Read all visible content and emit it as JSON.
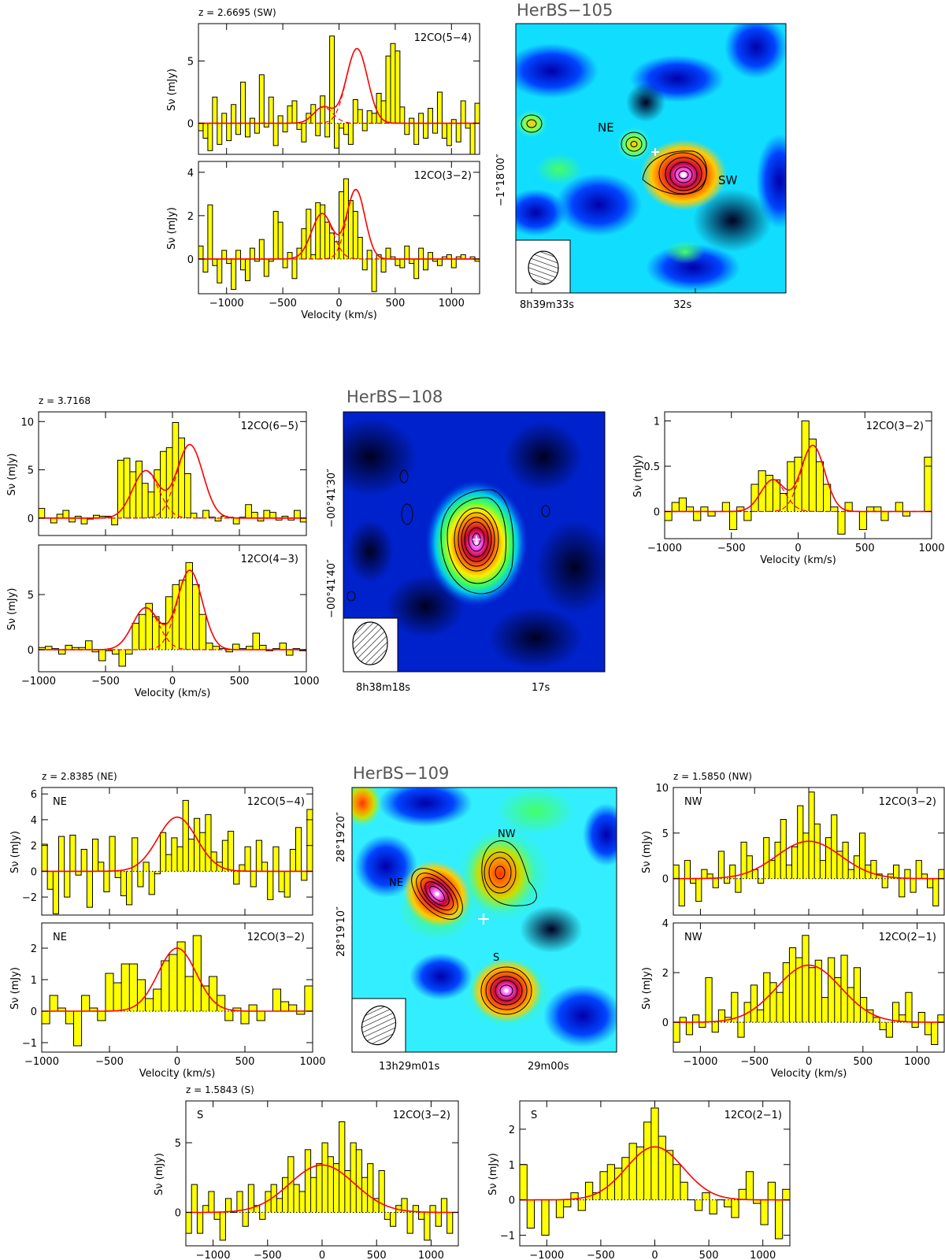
{
  "figure": {
    "titles": [
      "HerBS−105",
      "HerBS−108",
      "HerBS−109"
    ],
    "redshifts": [
      "z = 2.6695 (SW)",
      "z = 3.7168",
      "z = 2.8385 (NE)",
      "z = 1.5850 (NW)",
      "z = 1.5843 (S)"
    ],
    "x_axis_label": "Velocity (km/s)",
    "y_axis_label": "Sν (mJy)",
    "source_labels": {
      "hb105": [
        "NE",
        "SW"
      ],
      "hb109": [
        "NW",
        "NE",
        "S"
      ]
    },
    "map_ticks": {
      "hb105": {
        "ra": [
          "8h39m33s",
          "32s"
        ],
        "dec": [
          "−1°18′00″"
        ]
      },
      "hb108": {
        "ra": [
          "8h38m18s",
          "17s"
        ],
        "dec": [
          "−00°41′30″",
          "−00°41′40″"
        ]
      },
      "hb109": {
        "ra": [
          "13h29m01s",
          "29m00s"
        ],
        "dec": [
          "28°19′20″",
          "28°19′10″"
        ]
      }
    }
  },
  "chart_data": [
    {
      "id": "hb105-co54",
      "type": "bar",
      "line": "12CO(5−4)",
      "xlim": [
        -1250,
        1250
      ],
      "ylim": [
        -2.5,
        8
      ],
      "yticks": [
        0,
        5
      ],
      "xticks": [
        -1000,
        -500,
        0,
        500,
        1000
      ],
      "show_xticklabels": false,
      "xlabel": "",
      "ylabel": "Sν (mJy)",
      "redshift": "z = 2.6695 (SW)",
      "fit": [
        {
          "amp": 6.0,
          "center": 160,
          "fwhm": 220
        },
        {
          "amp": 1.3,
          "center": -140,
          "fwhm": 200
        }
      ],
      "values": [
        -0.6,
        -1.2,
        -2.2,
        2.1,
        -1.7,
        0.8,
        -1.4,
        1.5,
        -0.9,
        3.3,
        -1.1,
        0.4,
        -0.8,
        3.9,
        -0.3,
        2.1,
        -1.8,
        0.6,
        -0.7,
        1.4,
        1.8,
        -0.5,
        -1.5,
        0.8,
        1.5,
        -1.0,
        2.2,
        -1.1,
        7.0,
        -2.0,
        -0.4,
        -0.9,
        -1.7,
        1.9,
        1.1,
        -0.6,
        1.0,
        0.8,
        2.4,
        1.8,
        5.4,
        6.4,
        5.8,
        1.3,
        -0.9,
        0.4,
        -1.7,
        0.8,
        -1.2,
        1.2,
        -0.8,
        2.5,
        -1.2,
        -1.8,
        0.3,
        -1.5,
        1.8,
        -0.4,
        -2.5,
        1.6
      ]
    },
    {
      "id": "hb105-co32",
      "type": "bar",
      "line": "12CO(3−2)",
      "xlim": [
        -1250,
        1250
      ],
      "ylim": [
        -1.6,
        4.5
      ],
      "yticks": [
        0,
        2,
        4
      ],
      "xticks": [
        -1000,
        -500,
        0,
        500,
        1000
      ],
      "show_xticklabels": true,
      "xlabel": "Velocity (km/s)",
      "ylabel": "Sν (mJy)",
      "fit": [
        {
          "amp": 3.2,
          "center": 150,
          "fwhm": 190
        },
        {
          "amp": 2.1,
          "center": -150,
          "fwhm": 220
        }
      ],
      "values": [
        0.6,
        -0.6,
        2.5,
        -0.3,
        -1.1,
        0.4,
        -0.2,
        -1.4,
        0.4,
        -0.5,
        -1.0,
        0.5,
        -0.1,
        0.9,
        -0.8,
        -0.1,
        2.2,
        1.7,
        -0.4,
        0.3,
        -0.9,
        0.5,
        1.4,
        2.3,
        0.2,
        2.6,
        2.5,
        1.7,
        1.2,
        0.8,
        3.1,
        3.7,
        2.7,
        2.2,
        1.0,
        -0.5,
        0.4,
        -1.5,
        0.2,
        -0.6,
        0.5,
        0.1,
        -0.3,
        -0.4,
        0.6,
        -0.2,
        -0.9,
        0.5,
        -0.5,
        0.3,
        -0.1,
        -0.3,
        0.1,
        0.2,
        -0.4,
        0.1,
        0.2,
        0.0,
        0.1,
        -0.1
      ]
    },
    {
      "id": "hb108-co65",
      "type": "bar",
      "line": "12CO(6−5)",
      "xlim": [
        -1000,
        1000
      ],
      "ylim": [
        -1.8,
        11
      ],
      "yticks": [
        0,
        5,
        10
      ],
      "xticks": [
        -1000,
        -500,
        0,
        500,
        1000
      ],
      "show_xticklabels": false,
      "xlabel": "",
      "ylabel": "Sν (mJy)",
      "redshift": "z = 3.7168",
      "fit": [
        {
          "amp": 7.6,
          "center": 130,
          "fwhm": 230
        },
        {
          "amp": 4.9,
          "center": -200,
          "fwhm": 230
        }
      ],
      "values": [
        1.0,
        0.0,
        -0.5,
        0.4,
        0.8,
        -0.4,
        0.2,
        -0.6,
        -0.1,
        0.3,
        0.2,
        0.2,
        -0.7,
        6.0,
        6.2,
        4.8,
        5.9,
        3.6,
        2.7,
        5.0,
        6.9,
        7.3,
        9.9,
        8.3,
        4.6,
        0.5,
        0.0,
        0.8,
        0.1,
        -0.3,
        0.2,
        0.1,
        -0.6,
        0.1,
        1.4,
        0.6,
        -0.3,
        0.8,
        0.6,
        -0.2,
        0.2,
        -0.2,
        0.8,
        -0.4
      ]
    },
    {
      "id": "hb108-co43",
      "type": "bar",
      "line": "12CO(4−3)",
      "xlim": [
        -1000,
        1000
      ],
      "ylim": [
        -2,
        9.5
      ],
      "yticks": [
        0,
        5
      ],
      "xticks": [
        -1000,
        -500,
        0,
        500,
        1000
      ],
      "show_xticklabels": true,
      "xlabel": "Velocity (km/s)",
      "ylabel": "Sν (mJy)",
      "fit": [
        {
          "amp": 7.2,
          "center": 130,
          "fwhm": 220
        },
        {
          "amp": 3.8,
          "center": -200,
          "fwhm": 230
        }
      ],
      "values": [
        0.2,
        0.3,
        0.1,
        -0.4,
        0.4,
        0.2,
        0.2,
        0.8,
        -0.2,
        -1.0,
        -0.1,
        -0.4,
        -1.5,
        -0.4,
        2.4,
        3.2,
        4.2,
        3.0,
        2.4,
        4.8,
        5.9,
        6.3,
        7.9,
        5.9,
        3.2,
        0.6,
        0.3,
        0.1,
        -0.2,
        0.5,
        0.1,
        0.3,
        1.5,
        0.4,
        -0.1,
        0.1,
        0.6,
        -0.5,
        0.1,
        -0.1
      ]
    },
    {
      "id": "hb108-co32",
      "type": "bar",
      "line": "12CO(3−2)",
      "xlim": [
        -1000,
        1000
      ],
      "ylim": [
        -0.3,
        1.1
      ],
      "yticks": [
        0,
        0.5,
        1
      ],
      "xticks": [
        -1000,
        -500,
        0,
        500,
        1000
      ],
      "show_xticklabels": true,
      "xlabel": "Velocity (km/s)",
      "ylabel": "Sν (mJy)",
      "fit": [
        {
          "amp": 0.73,
          "center": 110,
          "fwhm": 210
        },
        {
          "amp": 0.35,
          "center": -190,
          "fwhm": 210
        }
      ],
      "values": [
        -0.1,
        0.1,
        0.15,
        0.05,
        -0.1,
        0.05,
        -0.05,
        0.0,
        0.1,
        -0.2,
        0.05,
        -0.1,
        0.3,
        0.45,
        0.4,
        0.35,
        0.2,
        0.55,
        0.6,
        1.0,
        0.8,
        0.55,
        0.3,
        0.05,
        -0.25,
        0.1,
        0.0,
        -0.2,
        0.05,
        0.05,
        -0.1,
        0.0,
        0.1,
        -0.05,
        0.0,
        0.0,
        0.6
      ]
    },
    {
      "id": "hb109-ne-co54",
      "type": "bar",
      "line": "12CO(5−4)",
      "tag": "NE",
      "xlim": [
        -1000,
        1000
      ],
      "ylim": [
        -3.4,
        6.5
      ],
      "yticks": [
        -2,
        0,
        2,
        4,
        6
      ],
      "xticks": [
        -1000,
        -500,
        0,
        500,
        1000
      ],
      "show_xticklabels": false,
      "xlabel": "",
      "ylabel": "Sν (mJy)",
      "redshift": "z = 2.8385 (NE)",
      "fit": [
        {
          "amp": 4.2,
          "center": 0,
          "fwhm": 340
        }
      ],
      "values": [
        2.1,
        -1.4,
        -3.3,
        2.7,
        -2.0,
        2.8,
        -0.3,
        1.7,
        -2.8,
        2.5,
        0.7,
        -1.6,
        2.7,
        -0.5,
        -1.9,
        -2.6,
        2.6,
        -1.2,
        0.7,
        -1.8,
        -0.2,
        3.0,
        1.3,
        2.6,
        1.9,
        5.5,
        2.5,
        4.1,
        3.0,
        4.4,
        1.5,
        0.7,
        2.4,
        3.1,
        -1.0,
        0.5,
        1.9,
        -1.2,
        2.4,
        0.7,
        -2.2,
        1.9,
        -1.6,
        -2.0,
        1.7,
        3.4,
        -0.7,
        4.8
      ]
    },
    {
      "id": "hb109-ne-co32",
      "type": "bar",
      "line": "12CO(3−2)",
      "tag": "NE",
      "xlim": [
        -1000,
        1000
      ],
      "ylim": [
        -1.3,
        2.8
      ],
      "yticks": [
        -1,
        0,
        1,
        2
      ],
      "xticks": [
        -1000,
        -500,
        0,
        500,
        1000
      ],
      "show_xticklabels": true,
      "xlabel": "Velocity (km/s)",
      "ylabel": "Sν (mJy)",
      "fit": [
        {
          "amp": 2.0,
          "center": 0,
          "fwhm": 330
        }
      ],
      "values": [
        -0.4,
        0.5,
        0.1,
        -0.4,
        -1.1,
        0.5,
        0.1,
        -0.3,
        1.2,
        0.9,
        1.5,
        1.5,
        1.0,
        0.4,
        0.7,
        1.6,
        1.8,
        2.2,
        1.1,
        2.4,
        0.8,
        1.1,
        0.5,
        -0.3,
        0.1,
        -0.4,
        0.2,
        -0.3,
        0.0,
        0.7,
        0.3,
        0.2,
        -0.1,
        0.8
      ]
    },
    {
      "id": "hb109-nw-co32",
      "type": "bar",
      "line": "12CO(3−2)",
      "tag": "NW",
      "xlim": [
        -1250,
        1250
      ],
      "ylim": [
        -4,
        10
      ],
      "yticks": [
        0,
        5,
        10
      ],
      "xticks": [
        -1000,
        -500,
        0,
        500,
        1000
      ],
      "show_xticklabels": false,
      "xlabel": "",
      "ylabel": "Sν (mJy)",
      "redshift": "z = 1.5850 (NW)",
      "fit": [
        {
          "amp": 4.1,
          "center": 0,
          "fwhm": 700
        }
      ],
      "values": [
        1.5,
        -3.0,
        2.0,
        -0.5,
        -2.5,
        1.0,
        0.5,
        -1.0,
        3.0,
        -0.5,
        1.5,
        -1.5,
        4.0,
        2.5,
        1.0,
        -0.5,
        4.5,
        2.0,
        4.0,
        6.5,
        1.5,
        3.5,
        8.0,
        5.0,
        9.5,
        6.0,
        2.0,
        4.5,
        7.0,
        3.0,
        4.0,
        1.0,
        2.5,
        5.0,
        1.5,
        2.0,
        0.5,
        -1.0,
        0.5,
        1.5,
        -2.0,
        1.0,
        -1.5,
        2.0,
        0.5,
        -1.0,
        -3.0,
        1.0
      ]
    },
    {
      "id": "hb109-nw-co21",
      "type": "bar",
      "line": "12CO(2−1)",
      "tag": "NW",
      "xlim": [
        -1250,
        1250
      ],
      "ylim": [
        -1.2,
        4
      ],
      "yticks": [
        0,
        2,
        4
      ],
      "xticks": [
        -1000,
        -500,
        0,
        500,
        1000
      ],
      "show_xticklabels": true,
      "xlabel": "Velocity (km/s)",
      "ylabel": "Sν (mJy)",
      "fit": [
        {
          "amp": 2.3,
          "center": 0,
          "fwhm": 700
        }
      ],
      "values": [
        -0.8,
        0.2,
        -0.5,
        0.3,
        -0.2,
        1.8,
        -0.4,
        0.5,
        0.2,
        1.2,
        -0.6,
        0.8,
        1.5,
        0.5,
        2.0,
        1.6,
        1.2,
        2.4,
        3.0,
        2.6,
        3.5,
        2.2,
        2.5,
        1.0,
        2.6,
        1.8,
        2.7,
        1.4,
        2.2,
        1.0,
        0.5,
        0.2,
        -0.3,
        -0.6,
        0.8,
        0.3,
        1.2,
        -0.2,
        0.4,
        -0.5,
        -0.9,
        0.3
      ]
    },
    {
      "id": "hb109-s-co32",
      "type": "bar",
      "line": "12CO(3−2)",
      "tag": "S",
      "xlim": [
        -1250,
        1250
      ],
      "ylim": [
        -2.4,
        8
      ],
      "yticks": [
        0,
        5
      ],
      "xticks": [
        -1000,
        -500,
        0,
        500,
        1000
      ],
      "show_xticklabels": true,
      "xlabel": "Velocity (km/s)",
      "ylabel": "Sν (mJy)",
      "redshift": "z = 1.5843 (S)",
      "fit": [
        {
          "amp": 3.4,
          "center": 0,
          "fwhm": 700
        }
      ],
      "values": [
        -1.5,
        2.0,
        -1.5,
        0.5,
        1.5,
        -0.5,
        -2.0,
        1.0,
        0.0,
        1.5,
        -1.0,
        2.0,
        0.5,
        -0.5,
        1.5,
        2.0,
        1.0,
        2.5,
        4.0,
        2.0,
        1.5,
        4.5,
        2.5,
        3.5,
        5.0,
        4.0,
        3.5,
        6.5,
        3.0,
        5.0,
        4.5,
        2.5,
        3.5,
        1.0,
        3.0,
        -0.5,
        -1.0,
        0.5,
        1.0,
        -1.5,
        0.5,
        -0.5,
        -2.0,
        0.5,
        -1.0,
        1.0,
        -1.5,
        0.0
      ]
    },
    {
      "id": "hb109-s-co21",
      "type": "bar",
      "line": "12CO(2−1)",
      "tag": "S",
      "xlim": [
        -1250,
        1250
      ],
      "ylim": [
        -1.3,
        2.8
      ],
      "yticks": [
        -1,
        0,
        1,
        2
      ],
      "xticks": [
        -1000,
        -500,
        0,
        500,
        1000
      ],
      "show_xticklabels": true,
      "xlabel": "Velocity (km/s)",
      "ylabel": "Sν (mJy)",
      "fit": [
        {
          "amp": 1.5,
          "center": 0,
          "fwhm": 620
        }
      ],
      "values": [
        1.0,
        -0.8,
        0.0,
        -1.0,
        0.0,
        -0.5,
        -0.2,
        0.2,
        -0.3,
        0.5,
        0.2,
        0.8,
        1.0,
        0.9,
        1.2,
        1.6,
        1.5,
        2.2,
        2.6,
        1.8,
        1.4,
        1.0,
        0.5,
        0.0,
        -0.3,
        0.2,
        -0.4,
        0.0,
        -0.2,
        -0.5,
        0.3,
        0.8,
        -0.1,
        -0.7,
        0.5,
        -1.1,
        0.3
      ]
    }
  ]
}
